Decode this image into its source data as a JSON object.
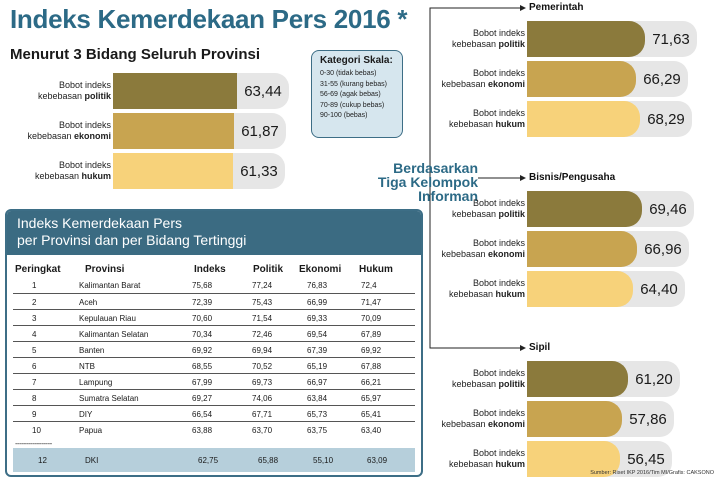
{
  "title": "Indeks Kemerdekaan Pers 2016 *",
  "subtitle": "Menurut 3 Bidang Seluruh Provinsi",
  "legend": {
    "label_prefix": "Bobot indeks",
    "label_mid": "kebebasan",
    "politik": "politik",
    "ekonomi": "ekonomi",
    "hukum": "hukum"
  },
  "kategori": {
    "title": "Kategori Skala:",
    "items": [
      "0-30 (tidak bebas)",
      "31-55 (kurang bebas)",
      "56-69 (agak bebas)",
      "70-89 (cukup bebas)",
      "90-100 (bebas)"
    ]
  },
  "berdasarkan": [
    "Berdasarkan",
    "Tiga Kelompok",
    "Informan"
  ],
  "colors": {
    "politik": "#8b7a3c",
    "ekonomi": "#c8a450",
    "hukum": "#f7d27a",
    "header": "#3b6b82",
    "highlight": "#b6cfdb"
  },
  "chart_data": [
    {
      "type": "bar",
      "title": "Menurut 3 Bidang Seluruh Provinsi",
      "categories": [
        "politik",
        "ekonomi",
        "hukum"
      ],
      "values": [
        63.44,
        61.87,
        61.33
      ],
      "labels": [
        "63,44",
        "61,87",
        "61,33"
      ]
    },
    {
      "type": "bar",
      "title": "Pemerintah",
      "categories": [
        "politik",
        "ekonomi",
        "hukum"
      ],
      "values": [
        71.63,
        66.29,
        68.29
      ],
      "labels": [
        "71,63",
        "66,29",
        "68,29"
      ]
    },
    {
      "type": "bar",
      "title": "Bisnis/Pengusaha",
      "categories": [
        "politik",
        "ekonomi",
        "hukum"
      ],
      "values": [
        69.46,
        66.96,
        64.4
      ],
      "labels": [
        "69,46",
        "66,96",
        "64,40"
      ]
    },
    {
      "type": "bar",
      "title": "Sipil",
      "categories": [
        "politik",
        "ekonomi",
        "hukum"
      ],
      "values": [
        61.2,
        57.86,
        56.45
      ],
      "labels": [
        "61,20",
        "57,86",
        "56,45"
      ]
    },
    {
      "type": "table",
      "title": [
        "Indeks Kemerdekaan Pers",
        "per Provinsi dan per Bidang Tertinggi"
      ],
      "columns": [
        "Peringkat",
        "Provinsi",
        "Indeks",
        "Politik",
        "Ekonomi",
        "Hukum"
      ],
      "rows": [
        [
          "1",
          "Kalimantan Barat",
          "75,68",
          "77,24",
          "76,83",
          "72,4"
        ],
        [
          "2",
          "Aceh",
          "72,39",
          "75,43",
          "66,99",
          "71,47"
        ],
        [
          "3",
          "Kepulauan Riau",
          "70,60",
          "71,54",
          "69,33",
          "70,09"
        ],
        [
          "4",
          "Kalimantan Selatan",
          "70,34",
          "72,46",
          "69,54",
          "67,89"
        ],
        [
          "5",
          "Banten",
          "69,92",
          "69,94",
          "67,39",
          "69,92"
        ],
        [
          "6",
          "NTB",
          "68,55",
          "70,52",
          "65,19",
          "67,88"
        ],
        [
          "7",
          "Lampung",
          "67,99",
          "69,73",
          "66,97",
          "66,21"
        ],
        [
          "8",
          "Sumatra Selatan",
          "69,27",
          "74,06",
          "63,84",
          "65,97"
        ],
        [
          "9",
          "DIY",
          "66,54",
          "67,71",
          "65,73",
          "65,41"
        ],
        [
          "10",
          "Papua",
          "63,88",
          "63,70",
          "63,75",
          "63,40"
        ]
      ],
      "separator": "-----------------",
      "highlight_row": [
        "12",
        "DKI",
        "62,75",
        "65,88",
        "55,10",
        "63,09"
      ]
    }
  ],
  "source": "Sumber: Riset IKP 2016/Tim MI/Grafis: CAKSONO"
}
